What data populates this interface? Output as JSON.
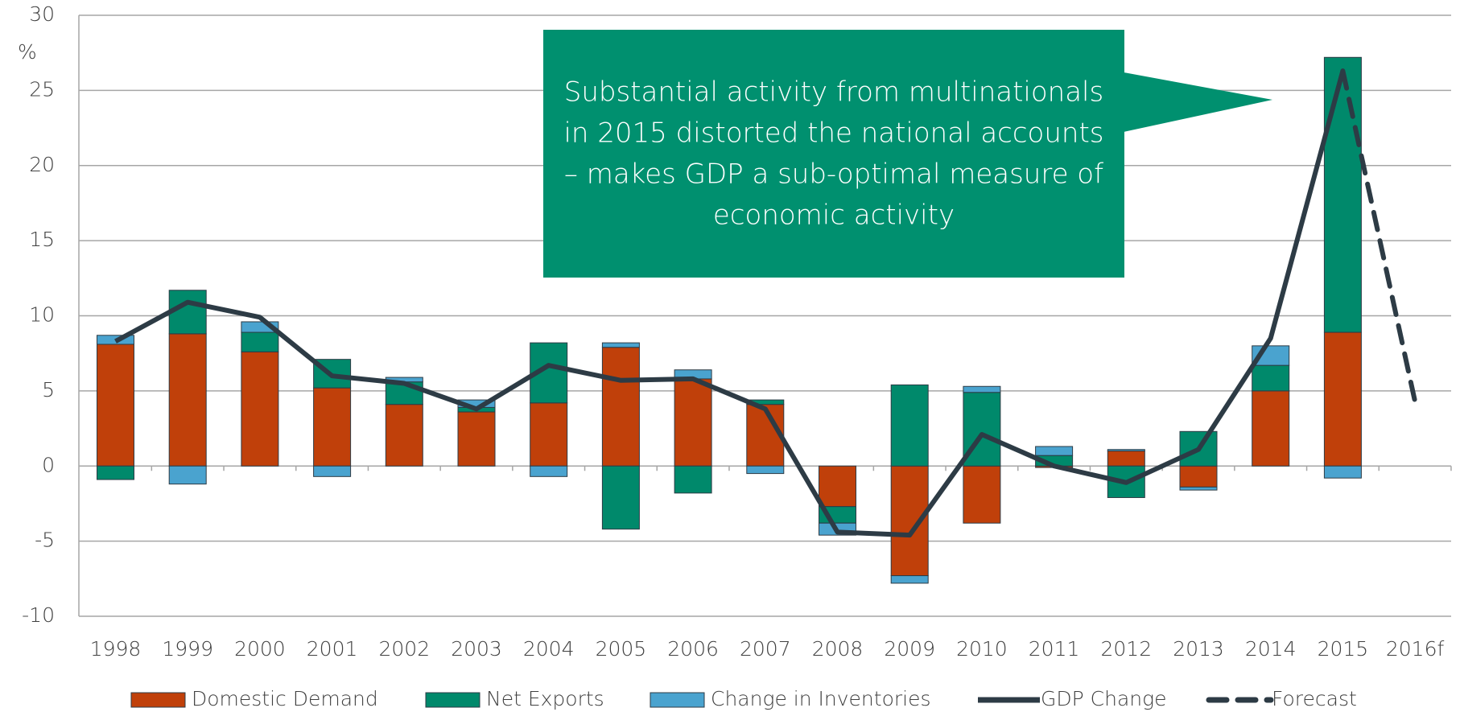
{
  "chart_data": {
    "type": "bar",
    "y_label": "%",
    "categories": [
      "1998",
      "1999",
      "2000",
      "2001",
      "2002",
      "2003",
      "2004",
      "2005",
      "2006",
      "2007",
      "2008",
      "2009",
      "2010",
      "2011",
      "2012",
      "2013",
      "2014",
      "2015",
      "2016f"
    ],
    "series": [
      {
        "name": "Domestic Demand",
        "color": "#c0400a",
        "values": [
          8.1,
          8.8,
          7.6,
          5.2,
          4.1,
          3.6,
          4.2,
          7.9,
          5.8,
          4.1,
          -2.7,
          -7.3,
          -3.8,
          -0.1,
          1.0,
          -1.4,
          5.0,
          8.9,
          null
        ]
      },
      {
        "name": "Net Exports",
        "color": "#00896b",
        "values": [
          -0.9,
          2.9,
          1.3,
          1.9,
          1.5,
          0.3,
          4.0,
          -4.2,
          -1.8,
          0.3,
          -1.1,
          5.4,
          4.9,
          0.7,
          -2.1,
          2.3,
          1.7,
          18.3,
          null
        ]
      },
      {
        "name": "Change in Inventories",
        "color": "#4aa3cf",
        "values": [
          0.6,
          -1.2,
          0.7,
          -0.7,
          0.3,
          0.5,
          -0.7,
          0.3,
          0.6,
          -0.5,
          -0.8,
          -0.5,
          0.4,
          0.6,
          0.1,
          -0.2,
          1.3,
          -0.8,
          null
        ]
      },
      {
        "name": "GDP Change",
        "type": "line",
        "color": "#2d3b45",
        "values": [
          8.3,
          10.9,
          9.9,
          6.0,
          5.5,
          3.8,
          6.7,
          5.7,
          5.8,
          3.8,
          -4.4,
          -4.6,
          2.1,
          0.0,
          -1.1,
          1.1,
          8.5,
          26.3,
          null
        ]
      },
      {
        "name": "Forecast",
        "type": "line",
        "dashed": true,
        "color": "#2d3b45",
        "values": [
          null,
          null,
          null,
          null,
          null,
          null,
          null,
          null,
          null,
          null,
          null,
          null,
          null,
          null,
          null,
          null,
          null,
          26.3,
          4.3
        ]
      }
    ],
    "ylim": [
      -10,
      30
    ],
    "yticks": [
      -10,
      -5,
      0,
      5,
      10,
      15,
      20,
      25,
      30
    ],
    "grid": true,
    "legend": "bottom",
    "annotation": {
      "lines": [
        "Substantial activity from multinationals",
        "in 2015 distorted the national accounts",
        "– makes GDP a sub-optimal measure of",
        "economic activity"
      ],
      "color": "#00906f"
    }
  }
}
